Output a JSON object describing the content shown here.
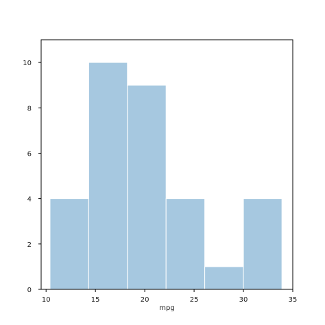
{
  "chart_data": {
    "type": "bar",
    "xlabel": "mpg",
    "ylabel": "",
    "xlim": [
      9.5,
      35
    ],
    "ylim": [
      0,
      11
    ],
    "bin_edges": [
      10.4,
      14.32,
      18.24,
      22.16,
      26.08,
      30.0,
      33.9
    ],
    "values": [
      4,
      10,
      9,
      4,
      1,
      4
    ],
    "xticks": [
      10,
      15,
      20,
      25,
      30,
      35
    ],
    "yticks": [
      0,
      2,
      4,
      6,
      8,
      10
    ],
    "colors": {
      "bar_fill": "#a6c8e0",
      "bar_edge": "#ffffff",
      "axis": "#000000"
    }
  }
}
